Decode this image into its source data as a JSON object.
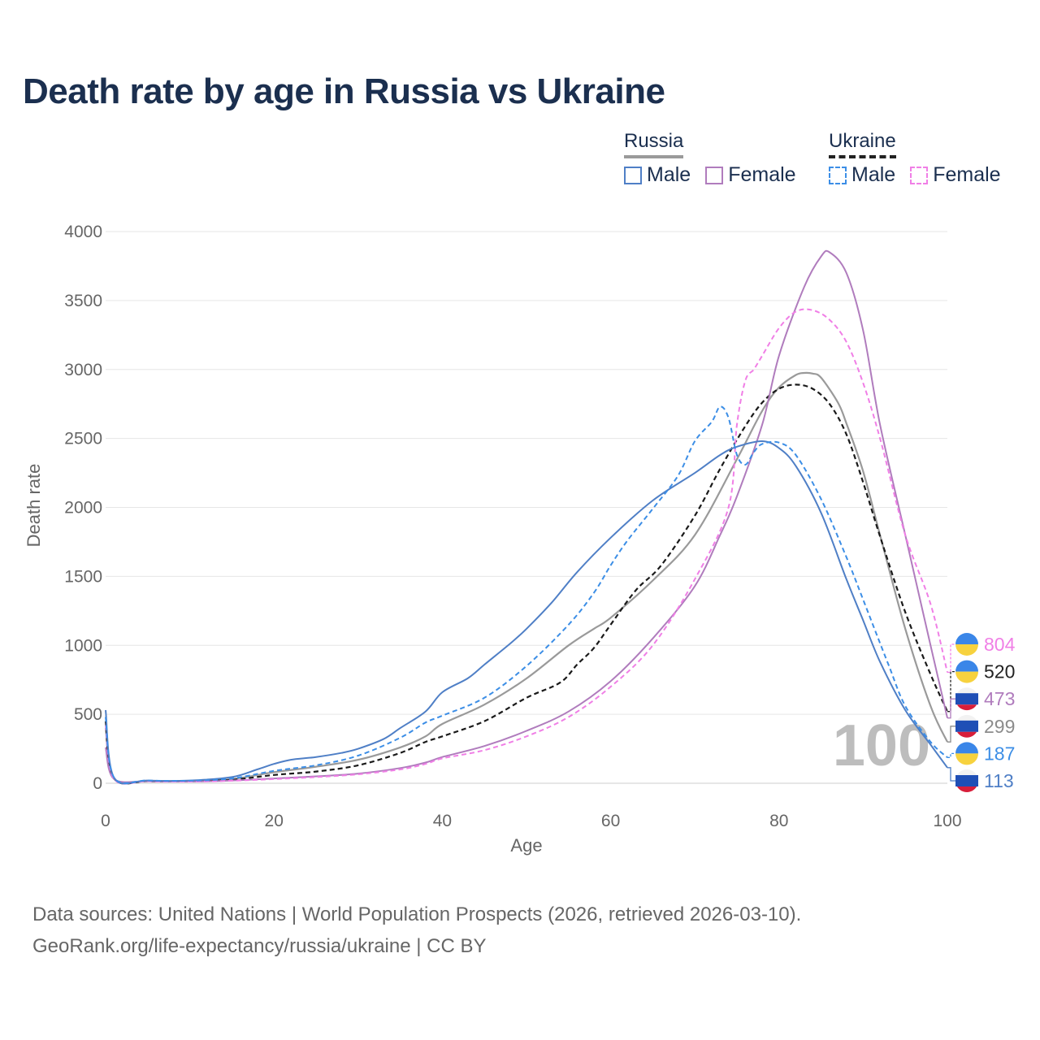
{
  "title": "Death rate by age in Russia vs Ukraine",
  "legend": {
    "russia": {
      "label": "Russia",
      "male_label": "Male",
      "female_label": "Female"
    },
    "ukraine": {
      "label": "Ukraine",
      "male_label": "Male",
      "female_label": "Female"
    }
  },
  "colors": {
    "russia_male": "#4f7fc6",
    "russia_female": "#b07cbd",
    "ukraine_male": "#3c8ee6",
    "ukraine_female": "#f07fe6",
    "combined_russia": "#9a9a9a",
    "combined_ukraine": "#1a1a1a",
    "flag_blue": "#3a86e8",
    "flag_yellow": "#f7d23e",
    "flag_white": "#f2f2f2",
    "flag_red": "#d81e3a",
    "flag_ru_blue": "#1f4fb6"
  },
  "watermark": "100",
  "footer": {
    "line1": "Data sources: United Nations | World Population Prospects (2026, retrieved 2026-03-10).",
    "line2": "GeoRank.org/life-expectancy/russia/ukraine | CC BY"
  },
  "chart_data": {
    "type": "line",
    "xlabel": "Age",
    "ylabel": "Death rate",
    "xlim": [
      0,
      100
    ],
    "ylim": [
      0,
      4000
    ],
    "xticks": [
      0,
      20,
      40,
      60,
      80,
      100
    ],
    "yticks": [
      0,
      500,
      1000,
      1500,
      2000,
      2500,
      3000,
      3500,
      4000
    ],
    "grid": true,
    "series": [
      {
        "key": "russia_female",
        "name": "Russia Female",
        "style": "solid",
        "x": [
          0,
          1,
          5,
          10,
          15,
          20,
          25,
          30,
          35,
          38,
          40,
          45,
          50,
          55,
          60,
          65,
          70,
          73,
          75,
          78,
          80,
          83,
          85,
          86,
          88,
          90,
          92,
          95,
          98,
          100
        ],
        "y": [
          260,
          30,
          15,
          12,
          20,
          35,
          50,
          70,
          110,
          150,
          190,
          270,
          380,
          520,
          740,
          1050,
          1430,
          1800,
          2080,
          2600,
          3100,
          3600,
          3820,
          3850,
          3700,
          3280,
          2600,
          1800,
          1000,
          473
        ],
        "end_label": "473"
      },
      {
        "key": "ukraine_female",
        "name": "Ukraine Female",
        "style": "dashed",
        "x": [
          0,
          1,
          5,
          10,
          15,
          20,
          25,
          30,
          35,
          38,
          40,
          45,
          50,
          55,
          60,
          65,
          70,
          74,
          75,
          76,
          77,
          78,
          80,
          82,
          84,
          86,
          88,
          90,
          92,
          95,
          98,
          100
        ],
        "y": [
          420,
          30,
          15,
          12,
          18,
          30,
          45,
          65,
          100,
          140,
          180,
          240,
          340,
          480,
          700,
          1000,
          1480,
          2000,
          2600,
          2920,
          3000,
          3100,
          3300,
          3420,
          3430,
          3360,
          3200,
          2900,
          2500,
          1800,
          1300,
          804
        ],
        "end_label": "804"
      },
      {
        "key": "russia_male",
        "name": "Russia Male",
        "style": "solid",
        "x": [
          0,
          1,
          5,
          10,
          15,
          18,
          20,
          22,
          25,
          28,
          30,
          33,
          35,
          38,
          40,
          43,
          45,
          48,
          50,
          53,
          56,
          60,
          65,
          70,
          73,
          75,
          78,
          80,
          82,
          85,
          88,
          90,
          92,
          95,
          98,
          100
        ],
        "y": [
          530,
          40,
          20,
          20,
          45,
          100,
          140,
          170,
          190,
          220,
          250,
          320,
          400,
          520,
          660,
          760,
          860,
          1010,
          1120,
          1310,
          1530,
          1780,
          2050,
          2250,
          2380,
          2440,
          2480,
          2430,
          2300,
          1960,
          1480,
          1180,
          880,
          530,
          280,
          113
        ],
        "end_label": "113"
      },
      {
        "key": "ukraine_male",
        "name": "Ukraine Male",
        "style": "dashed",
        "x": [
          0,
          1,
          5,
          10,
          15,
          20,
          25,
          30,
          35,
          38,
          40,
          45,
          50,
          55,
          58,
          60,
          62,
          65,
          68,
          70,
          72,
          73,
          74,
          75,
          76,
          77,
          78,
          80,
          82,
          85,
          88,
          90,
          93,
          95,
          98,
          100
        ],
        "y": [
          480,
          40,
          20,
          18,
          35,
          90,
          130,
          200,
          330,
          440,
          490,
          620,
          850,
          1150,
          1380,
          1580,
          1760,
          1990,
          2230,
          2480,
          2620,
          2730,
          2650,
          2380,
          2310,
          2400,
          2460,
          2470,
          2380,
          2060,
          1640,
          1330,
          860,
          560,
          300,
          187
        ],
        "end_label": "187"
      },
      {
        "key": "combined_russia",
        "name": "Russia (both sexes)",
        "style": "solid",
        "x": [
          0,
          1,
          5,
          10,
          15,
          20,
          25,
          30,
          35,
          38,
          40,
          45,
          50,
          55,
          58,
          60,
          65,
          70,
          75,
          78,
          80,
          82,
          83,
          84,
          85,
          87,
          88,
          90,
          92,
          95,
          98,
          100
        ],
        "y": [
          400,
          35,
          15,
          15,
          30,
          80,
          120,
          170,
          260,
          340,
          430,
          570,
          760,
          1000,
          1120,
          1200,
          1470,
          1800,
          2350,
          2700,
          2870,
          2960,
          2975,
          2970,
          2940,
          2760,
          2610,
          2260,
          1800,
          1120,
          560,
          299
        ],
        "end_label": "299"
      },
      {
        "key": "combined_ukraine",
        "name": "Ukraine (both sexes)",
        "style": "dashed",
        "x": [
          0,
          1,
          5,
          10,
          15,
          20,
          25,
          30,
          35,
          38,
          40,
          45,
          50,
          54,
          56,
          58,
          60,
          63,
          66,
          70,
          73,
          76,
          78,
          80,
          82,
          84,
          86,
          88,
          90,
          92,
          95,
          98,
          100
        ],
        "y": [
          450,
          35,
          15,
          15,
          25,
          60,
          85,
          130,
          220,
          300,
          340,
          450,
          620,
          730,
          860,
          980,
          1150,
          1400,
          1580,
          1940,
          2280,
          2590,
          2760,
          2860,
          2890,
          2860,
          2750,
          2530,
          2180,
          1790,
          1240,
          790,
          520
        ],
        "end_label": "520"
      }
    ]
  }
}
